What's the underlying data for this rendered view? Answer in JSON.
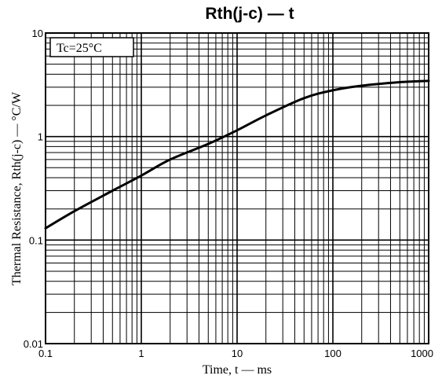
{
  "chart_data": {
    "type": "line",
    "title": "Rth(j-c)  —  t",
    "xlabel": "Time, t  —  ms",
    "ylabel": "Thermal Resistance, Rth(j-c)  —  °C/W",
    "x_scale": "log",
    "y_scale": "log",
    "xlim": [
      0.1,
      1000
    ],
    "ylim": [
      0.01,
      10
    ],
    "grid": true,
    "x_ticks": [
      "0.1",
      "1",
      "10",
      "100",
      "1000"
    ],
    "y_ticks": [
      "0.01",
      "0.1",
      "1",
      "10"
    ],
    "annotation": "Tc=25°C",
    "series": [
      {
        "x": [
          0.1,
          0.2,
          0.5,
          1,
          2,
          5,
          10,
          20,
          50,
          100,
          200,
          500,
          1000
        ],
        "y": [
          0.13,
          0.19,
          0.3,
          0.42,
          0.6,
          0.85,
          1.15,
          1.6,
          2.35,
          2.8,
          3.1,
          3.35,
          3.45
        ]
      }
    ]
  }
}
